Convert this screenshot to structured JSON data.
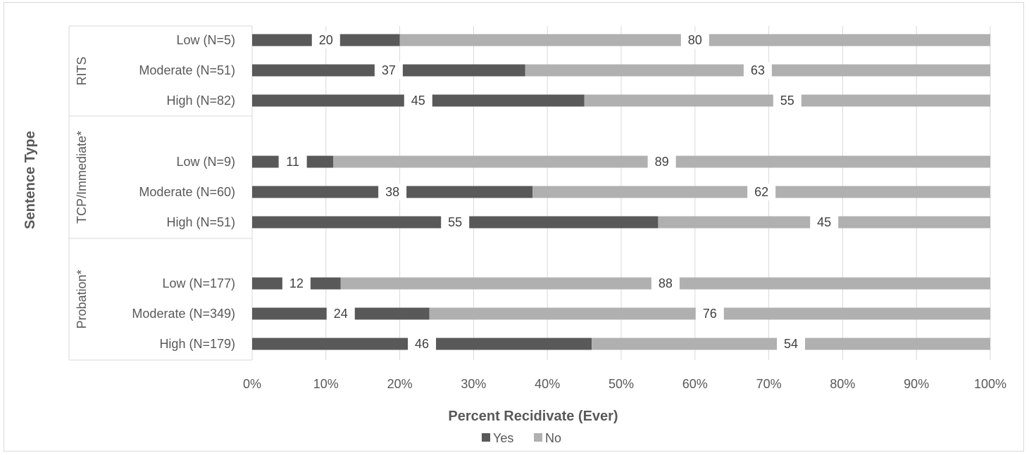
{
  "chart_data": {
    "type": "bar",
    "orientation": "horizontal",
    "stacked": "percent",
    "ylabel": "Sentence Type",
    "xlabel": "Percent Recidivate (Ever)",
    "xlim": [
      0,
      100
    ],
    "xticks": [
      "0%",
      "10%",
      "20%",
      "30%",
      "40%",
      "50%",
      "60%",
      "70%",
      "80%",
      "90%",
      "100%"
    ],
    "grid": true,
    "legend_position": "bottom",
    "groups": [
      {
        "name": "RITS",
        "categories": [
          "Low (N=5)",
          "Moderate (N=51)",
          "High (N=82)"
        ],
        "yes": [
          20,
          37,
          45
        ],
        "no": [
          80,
          63,
          55
        ]
      },
      {
        "name": "TCP/Immediate*",
        "categories": [
          "Low (N=9)",
          "Moderate (N=60)",
          "High (N=51)"
        ],
        "yes": [
          11,
          38,
          55
        ],
        "no": [
          89,
          62,
          45
        ]
      },
      {
        "name": "Probation*",
        "categories": [
          "Low (N=177)",
          "Moderate (N=349)",
          "High (N=179)"
        ],
        "yes": [
          12,
          24,
          46
        ],
        "no": [
          88,
          76,
          54
        ]
      }
    ],
    "series": [
      {
        "name": "Yes",
        "color": "#595959"
      },
      {
        "name": "No",
        "color": "#b0b0b0"
      }
    ]
  }
}
